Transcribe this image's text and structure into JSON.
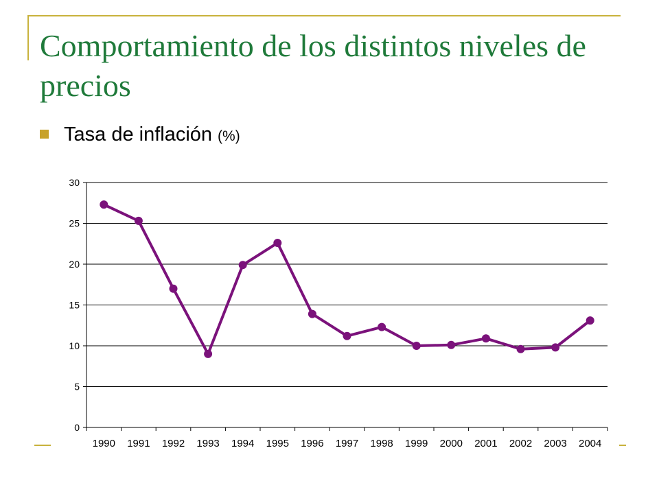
{
  "slide": {
    "title": "Comportamiento de los distintos niveles de precios",
    "bullet": "Tasa de inflación",
    "bullet_unit": "(%)",
    "accent_color": "#c8b23c",
    "title_color": "#1f7a3a"
  },
  "chart_data": {
    "type": "line",
    "title": "",
    "xlabel": "",
    "ylabel": "",
    "categories": [
      "1990",
      "1991",
      "1992",
      "1993",
      "1994",
      "1995",
      "1996",
      "1997",
      "1998",
      "1999",
      "2000",
      "2001",
      "2002",
      "2003",
      "2004"
    ],
    "series": [
      {
        "values": [
          27.3,
          25.3,
          17.0,
          9.0,
          19.9,
          22.6,
          13.9,
          11.2,
          12.3,
          10.0,
          10.1,
          10.9,
          9.6,
          9.8,
          13.1
        ],
        "color": "#7b127b"
      }
    ],
    "ylim": [
      0,
      30
    ],
    "yticks": [
      0,
      5,
      10,
      15,
      20,
      25,
      30
    ],
    "grid": true
  }
}
